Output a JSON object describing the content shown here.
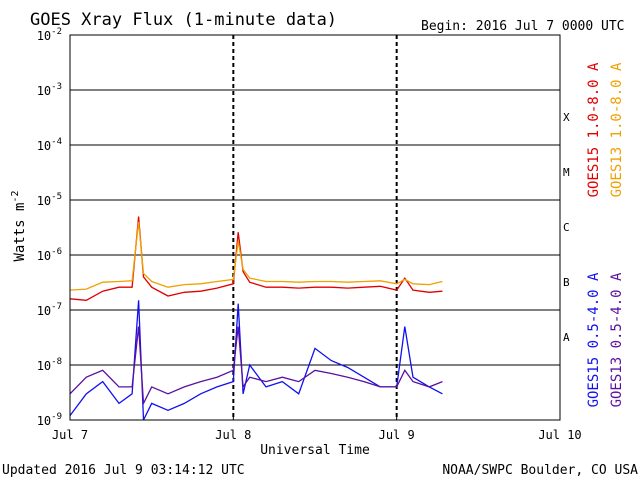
{
  "header": {
    "title": "GOES Xray Flux (1-minute data)",
    "begin": "Begin:  2016 Jul 7 0000 UTC"
  },
  "footer": {
    "updated": "Updated 2016 Jul  9 03:14:12 UTC",
    "credit": "NOAA/SWPC Boulder, CO USA"
  },
  "chart_data": {
    "type": "line",
    "title": "GOES Xray Flux (1-minute data)",
    "xlabel": "Universal Time",
    "ylabel": "Watts m",
    "ylabel_superscript": "-2",
    "yscale": "log",
    "xlim": [
      0,
      3
    ],
    "ylim": [
      1e-09,
      0.01
    ],
    "grid": true,
    "x_ticks": [
      "Jul 7",
      "Jul 8",
      "Jul 9",
      "Jul 10"
    ],
    "y_ticks": [
      {
        "base": "10",
        "exp": "-9"
      },
      {
        "base": "10",
        "exp": "-8"
      },
      {
        "base": "10",
        "exp": "-7"
      },
      {
        "base": "10",
        "exp": "-6"
      },
      {
        "base": "10",
        "exp": "-5"
      },
      {
        "base": "10",
        "exp": "-4"
      },
      {
        "base": "10",
        "exp": "-3"
      },
      {
        "base": "10",
        "exp": "-2"
      }
    ],
    "flare_classes": [
      "A",
      "B",
      "C",
      "M",
      "X"
    ],
    "legend_placement": "right",
    "series": [
      {
        "name": "GOES15 1.0-8.0 A",
        "color": "#e00000",
        "x": [
          0,
          0.1,
          0.2,
          0.3,
          0.38,
          0.42,
          0.45,
          0.5,
          0.6,
          0.7,
          0.8,
          0.9,
          1.0,
          1.03,
          1.06,
          1.1,
          1.2,
          1.3,
          1.4,
          1.5,
          1.6,
          1.7,
          1.8,
          1.9,
          2.0,
          2.05,
          2.1,
          2.2,
          2.28
        ],
        "y": [
          1.6e-07,
          1.5e-07,
          2.2e-07,
          2.6e-07,
          2.6e-07,
          5e-06,
          4e-07,
          2.6e-07,
          1.8e-07,
          2.1e-07,
          2.2e-07,
          2.5e-07,
          3e-07,
          2.6e-06,
          5e-07,
          3.2e-07,
          2.6e-07,
          2.6e-07,
          2.5e-07,
          2.6e-07,
          2.6e-07,
          2.5e-07,
          2.6e-07,
          2.7e-07,
          2.3e-07,
          3.8e-07,
          2.3e-07,
          2.1e-07,
          2.2e-07
        ]
      },
      {
        "name": "GOES13 1.0-8.0 A",
        "color": "#f0a000",
        "x": [
          0,
          0.1,
          0.2,
          0.3,
          0.38,
          0.42,
          0.45,
          0.5,
          0.6,
          0.7,
          0.8,
          0.9,
          1.0,
          1.03,
          1.06,
          1.1,
          1.2,
          1.3,
          1.4,
          1.5,
          1.6,
          1.7,
          1.8,
          1.9,
          2.0,
          2.05,
          2.1,
          2.2,
          2.28
        ],
        "y": [
          2.3e-07,
          2.4e-07,
          3.2e-07,
          3.3e-07,
          3.4e-07,
          4e-06,
          4.6e-07,
          3.3e-07,
          2.6e-07,
          2.9e-07,
          3e-07,
          3.3e-07,
          3.6e-07,
          1.8e-06,
          5.5e-07,
          3.8e-07,
          3.3e-07,
          3.3e-07,
          3.2e-07,
          3.3e-07,
          3.3e-07,
          3.2e-07,
          3.3e-07,
          3.4e-07,
          3e-07,
          3.6e-07,
          3e-07,
          2.9e-07,
          3.3e-07
        ]
      },
      {
        "name": "GOES15 0.5-4.0 A",
        "color": "#1010f0",
        "x": [
          0,
          0.1,
          0.2,
          0.3,
          0.38,
          0.42,
          0.45,
          0.5,
          0.6,
          0.7,
          0.8,
          0.9,
          1.0,
          1.03,
          1.06,
          1.1,
          1.2,
          1.3,
          1.4,
          1.5,
          1.6,
          1.7,
          1.8,
          1.9,
          2.0,
          2.05,
          2.1,
          2.2,
          2.28
        ],
        "y": [
          1.2e-09,
          3e-09,
          5e-09,
          2e-09,
          3e-09,
          1.5e-07,
          1e-09,
          2e-09,
          1.5e-09,
          2e-09,
          3e-09,
          4e-09,
          5e-09,
          1.3e-07,
          3e-09,
          1e-08,
          4e-09,
          5e-09,
          3e-09,
          2e-08,
          1.2e-08,
          9e-09,
          6e-09,
          4e-09,
          4e-09,
          5e-08,
          6e-09,
          4e-09,
          3e-09
        ]
      },
      {
        "name": "GOES13 0.5-4.0 A",
        "color": "#5a10a0",
        "x": [
          0,
          0.1,
          0.2,
          0.3,
          0.38,
          0.42,
          0.45,
          0.5,
          0.6,
          0.7,
          0.8,
          0.9,
          1.0,
          1.03,
          1.06,
          1.1,
          1.2,
          1.3,
          1.4,
          1.5,
          1.6,
          1.7,
          1.8,
          1.9,
          2.0,
          2.05,
          2.1,
          2.2,
          2.28
        ],
        "y": [
          3e-09,
          6e-09,
          8e-09,
          4e-09,
          4e-09,
          5e-08,
          2e-09,
          4e-09,
          3e-09,
          4e-09,
          5e-09,
          6e-09,
          8e-09,
          5e-08,
          4e-09,
          6e-09,
          5e-09,
          6e-09,
          5e-09,
          8e-09,
          7e-09,
          6e-09,
          5e-09,
          4e-09,
          4e-09,
          8e-09,
          5e-09,
          4e-09,
          5e-09
        ]
      }
    ]
  }
}
